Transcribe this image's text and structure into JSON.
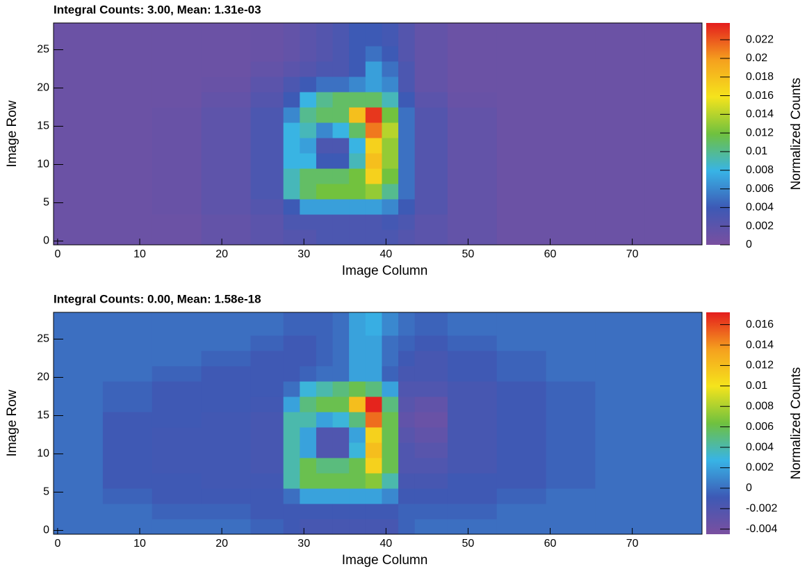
{
  "chart_data": [
    {
      "type": "heatmap",
      "title": "Integral Counts: 3.00, Mean: 1.31e-03",
      "x_label": "Image Column",
      "y_label": "Image Row",
      "colorbar_label": "Normalized Counts",
      "xlim": [
        -0.5,
        78.5
      ],
      "ylim": [
        -0.5,
        28.5
      ],
      "xticks": [
        0,
        10,
        20,
        30,
        40,
        50,
        60,
        70
      ],
      "yticks": [
        0,
        5,
        10,
        15,
        20,
        25
      ],
      "xbins": [
        -0.5,
        5.5,
        11.5,
        17.5,
        23.5,
        27.5,
        29.5,
        31.5,
        33.5,
        35.5,
        37.5,
        39.5,
        41.5,
        43.5,
        47.5,
        53.5,
        59.5,
        65.5,
        71.5,
        78.5
      ],
      "ybins": [
        -0.5,
        1.5,
        3.5,
        5.5,
        7.5,
        9.5,
        11.5,
        13.5,
        15.5,
        17.5,
        19.5,
        21.5,
        23.5,
        25.5,
        28.5
      ],
      "zlim": [
        0,
        0.0238
      ],
      "zticks": [
        0,
        0.002,
        0.004,
        0.006,
        0.008,
        0.01,
        0.012,
        0.014,
        0.016,
        0.018,
        0.02,
        0.022
      ],
      "colormap": [
        "#7a4fa0",
        "#3d59b5",
        "#38b4e6",
        "#6fc13f",
        "#f5e41c",
        "#f5a01e",
        "#e41d1d"
      ],
      "z": [
        [
          0.001,
          0.001,
          0.001,
          0.0015,
          0.002,
          0.0025,
          0.0025,
          0.003,
          0.003,
          0.003,
          0.003,
          0.003,
          0.0025,
          0.002,
          0.0015,
          0.001,
          0.001,
          0.001,
          0.001
        ],
        [
          0.001,
          0.001,
          0.001,
          0.0015,
          0.002,
          0.003,
          0.003,
          0.003,
          0.003,
          0.003,
          0.003,
          0.0035,
          0.003,
          0.002,
          0.0015,
          0.001,
          0.001,
          0.001,
          0.001
        ],
        [
          0.001,
          0.001,
          0.0012,
          0.0018,
          0.0025,
          0.004,
          0.007,
          0.007,
          0.007,
          0.007,
          0.007,
          0.006,
          0.004,
          0.0025,
          0.0015,
          0.001,
          0.001,
          0.001,
          0.001
        ],
        [
          0.001,
          0.001,
          0.0012,
          0.0018,
          0.003,
          0.009,
          0.011,
          0.012,
          0.012,
          0.012,
          0.013,
          0.01,
          0.005,
          0.0025,
          0.0015,
          0.001,
          0.001,
          0.001,
          0.001
        ],
        [
          0.001,
          0.001,
          0.0012,
          0.0018,
          0.003,
          0.009,
          0.011,
          0.011,
          0.011,
          0.012,
          0.017,
          0.012,
          0.005,
          0.0025,
          0.0015,
          0.001,
          0.001,
          0.001,
          0.001
        ],
        [
          0.001,
          0.001,
          0.0012,
          0.0018,
          0.003,
          0.008,
          0.008,
          0.004,
          0.004,
          0.009,
          0.018,
          0.013,
          0.005,
          0.0025,
          0.0015,
          0.001,
          0.001,
          0.001,
          0.001
        ],
        [
          0.001,
          0.001,
          0.0012,
          0.0018,
          0.003,
          0.008,
          0.007,
          0.003,
          0.003,
          0.008,
          0.017,
          0.013,
          0.005,
          0.0025,
          0.0015,
          0.001,
          0.001,
          0.001,
          0.001
        ],
        [
          0.001,
          0.001,
          0.0012,
          0.0018,
          0.003,
          0.008,
          0.009,
          0.006,
          0.008,
          0.011,
          0.021,
          0.014,
          0.005,
          0.0025,
          0.0015,
          0.001,
          0.001,
          0.001,
          0.001
        ],
        [
          0.001,
          0.001,
          0.0012,
          0.0018,
          0.003,
          0.006,
          0.01,
          0.011,
          0.011,
          0.018,
          0.023,
          0.012,
          0.005,
          0.0025,
          0.0015,
          0.001,
          0.001,
          0.001,
          0.001
        ],
        [
          0.001,
          0.001,
          0.001,
          0.0015,
          0.0025,
          0.004,
          0.008,
          0.01,
          0.011,
          0.011,
          0.011,
          0.009,
          0.004,
          0.002,
          0.0012,
          0.001,
          0.001,
          0.001,
          0.001
        ],
        [
          0.001,
          0.001,
          0.001,
          0.0012,
          0.002,
          0.003,
          0.004,
          0.005,
          0.005,
          0.006,
          0.007,
          0.006,
          0.003,
          0.0015,
          0.001,
          0.001,
          0.001,
          0.001,
          0.001
        ],
        [
          0.001,
          0.001,
          0.001,
          0.001,
          0.0015,
          0.002,
          0.0025,
          0.003,
          0.003,
          0.004,
          0.007,
          0.005,
          0.003,
          0.0015,
          0.001,
          0.001,
          0.001,
          0.001,
          0.001
        ],
        [
          0.001,
          0.001,
          0.001,
          0.001,
          0.0012,
          0.0015,
          0.002,
          0.0025,
          0.003,
          0.004,
          0.005,
          0.004,
          0.0025,
          0.0015,
          0.001,
          0.001,
          0.001,
          0.001,
          0.001
        ],
        [
          0.001,
          0.001,
          0.001,
          0.001,
          0.0012,
          0.0015,
          0.002,
          0.0025,
          0.003,
          0.004,
          0.004,
          0.0035,
          0.0025,
          0.0015,
          0.001,
          0.001,
          0.001,
          0.001,
          0.001
        ]
      ]
    },
    {
      "type": "heatmap",
      "title": "Integral Counts: 0.00, Mean: 1.58e-18",
      "x_label": "Image Column",
      "y_label": "Image Row",
      "colorbar_label": "Normalized Counts",
      "xlim": [
        -0.5,
        78.5
      ],
      "ylim": [
        -0.5,
        28.5
      ],
      "xticks": [
        0,
        10,
        20,
        30,
        40,
        50,
        60,
        70
      ],
      "yticks": [
        0,
        5,
        10,
        15,
        20,
        25
      ],
      "xbins": [
        -0.5,
        5.5,
        11.5,
        17.5,
        23.5,
        27.5,
        29.5,
        31.5,
        33.5,
        35.5,
        37.5,
        39.5,
        41.5,
        43.5,
        47.5,
        53.5,
        59.5,
        65.5,
        71.5,
        78.5
      ],
      "ybins": [
        -0.5,
        1.5,
        3.5,
        5.5,
        7.5,
        9.5,
        11.5,
        13.5,
        15.5,
        17.5,
        19.5,
        21.5,
        23.5,
        25.5,
        28.5
      ],
      "zlim": [
        -0.0045,
        0.0172
      ],
      "zticks": [
        -0.004,
        -0.002,
        0,
        0.002,
        0.004,
        0.006,
        0.008,
        0.01,
        0.012,
        0.014,
        0.016
      ],
      "colormap": [
        "#7a4fa0",
        "#3d59b5",
        "#38b4e6",
        "#6fc13f",
        "#f5e41c",
        "#f5a01e",
        "#e41d1d"
      ],
      "z": [
        [
          0,
          0,
          0,
          0,
          -0.0005,
          -0.001,
          -0.0015,
          -0.0015,
          -0.0015,
          -0.0015,
          -0.0015,
          -0.0015,
          -0.0005,
          0,
          0,
          0,
          0,
          0,
          0
        ],
        [
          0,
          0,
          -0.0005,
          -0.0005,
          -0.001,
          -0.001,
          -0.001,
          -0.001,
          -0.001,
          -0.001,
          -0.001,
          -0.001,
          -0.0005,
          -0.0005,
          -0.0005,
          0,
          0,
          0,
          0
        ],
        [
          0,
          -0.0005,
          -0.001,
          -0.001,
          -0.001,
          0,
          0.002,
          0.002,
          0.002,
          0.002,
          0.002,
          0.001,
          -0.001,
          -0.001,
          -0.001,
          -0.0005,
          0,
          0,
          0
        ],
        [
          0,
          -0.001,
          -0.001,
          -0.0012,
          -0.0012,
          0.004,
          0.006,
          0.006,
          0.006,
          0.006,
          0.007,
          0.004,
          -0.0015,
          -0.0015,
          -0.001,
          -0.001,
          -0.0005,
          0,
          0
        ],
        [
          0,
          -0.001,
          -0.0012,
          -0.0012,
          -0.0015,
          0.004,
          0.006,
          0.005,
          0.005,
          0.006,
          0.011,
          0.006,
          -0.002,
          -0.002,
          -0.0015,
          -0.001,
          -0.0005,
          0,
          0
        ],
        [
          0,
          -0.001,
          -0.0012,
          -0.0012,
          -0.0015,
          0.004,
          0.002,
          -0.002,
          -0.002,
          0.003,
          0.012,
          0.006,
          -0.002,
          -0.0025,
          -0.0015,
          -0.001,
          -0.0005,
          0,
          0
        ],
        [
          0,
          -0.001,
          -0.0012,
          -0.0012,
          -0.0015,
          0.004,
          0.002,
          -0.002,
          -0.002,
          0.002,
          0.011,
          0.006,
          -0.0025,
          -0.003,
          -0.0015,
          -0.001,
          -0.0005,
          0,
          0
        ],
        [
          0,
          -0.001,
          -0.001,
          -0.0012,
          -0.0015,
          0.004,
          0.004,
          0.002,
          0.003,
          0.005,
          0.015,
          0.006,
          -0.003,
          -0.0035,
          -0.0015,
          -0.001,
          -0.0005,
          0,
          0
        ],
        [
          0,
          -0.0005,
          -0.001,
          -0.001,
          -0.0012,
          0.002,
          0.005,
          0.006,
          0.006,
          0.012,
          0.017,
          0.005,
          -0.0025,
          -0.003,
          -0.0015,
          -0.001,
          -0.0005,
          0,
          0
        ],
        [
          0,
          -0.0005,
          -0.001,
          -0.001,
          -0.001,
          0,
          0.003,
          0.004,
          0.005,
          0.006,
          0.005,
          0.002,
          -0.002,
          -0.002,
          -0.0015,
          -0.001,
          -0.0005,
          0,
          0
        ],
        [
          0,
          0,
          -0.0005,
          -0.001,
          -0.001,
          -0.001,
          -0.0005,
          0,
          0,
          0.002,
          0.002,
          -0.0005,
          -0.0015,
          -0.0015,
          -0.001,
          -0.0005,
          0,
          0,
          0
        ],
        [
          0,
          0,
          0,
          -0.0005,
          -0.001,
          -0.001,
          -0.001,
          -0.0005,
          0,
          0.002,
          0.002,
          0,
          -0.001,
          -0.0015,
          -0.001,
          -0.0005,
          0,
          0,
          0
        ],
        [
          0,
          0,
          0,
          0,
          -0.0005,
          -0.001,
          -0.001,
          -0.0005,
          0,
          0.002,
          0.002,
          0,
          -0.0005,
          -0.001,
          -0.0005,
          0,
          0,
          0,
          0
        ],
        [
          0,
          0,
          0,
          0,
          0,
          -0.0005,
          -0.0005,
          -0.0005,
          0,
          0.002,
          0.0025,
          0.001,
          0,
          -0.0005,
          0,
          0,
          0,
          0,
          0
        ]
      ]
    }
  ]
}
